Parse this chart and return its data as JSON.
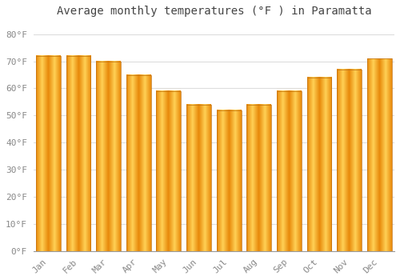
{
  "title": "Average monthly temperatures (°F ) in Paramatta",
  "categories": [
    "Jan",
    "Feb",
    "Mar",
    "Apr",
    "May",
    "Jun",
    "Jul",
    "Aug",
    "Sep",
    "Oct",
    "Nov",
    "Dec"
  ],
  "values": [
    72,
    72,
    70,
    65,
    59,
    54,
    52,
    54,
    59,
    64,
    67,
    71
  ],
  "bar_color_center": "#FFD966",
  "bar_color_edge": "#F0A020",
  "bar_color_main": "#FFA500",
  "background_color": "#FFFFFF",
  "grid_color": "#DDDDDD",
  "ylim": [
    0,
    84
  ],
  "ytick_step": 10,
  "title_fontsize": 10,
  "tick_fontsize": 8,
  "bar_width": 0.82
}
